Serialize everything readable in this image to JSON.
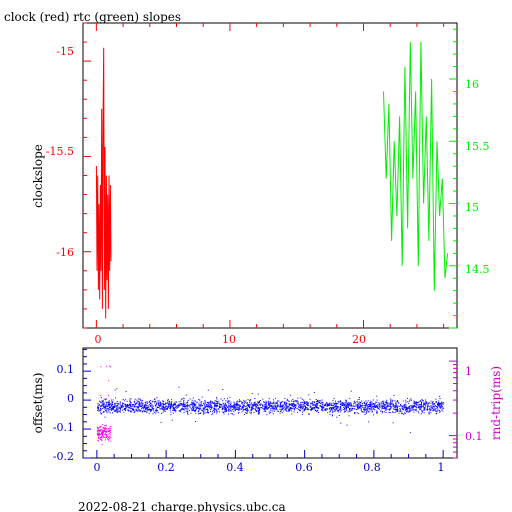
{
  "title": "clock (red) rtc (green) slopes",
  "footer": "2022-08-21 charge.physics.ubc.ca",
  "colors": {
    "clock": "#ff0000",
    "rtc": "#00ee00",
    "offset": "#0000ff",
    "rndtrip": "#ff00ff",
    "axis_blue": "#0000cc",
    "axis_magenta": "#cc00cc"
  },
  "chart_data": [
    {
      "type": "line",
      "title": "clock (red) rtc (green) slopes",
      "xlabel": "",
      "ylabel": "clockslope",
      "xlim": [
        -1,
        27
      ],
      "ylim": [
        -16.4,
        -14.8
      ],
      "y2lim": [
        14.0,
        16.45
      ],
      "x_ticks": [
        "0",
        "10",
        "20"
      ],
      "y_ticks": [
        "-15",
        "-15.5",
        "-16"
      ],
      "y2_ticks": [
        "16",
        "15.5",
        "15",
        "14.5"
      ],
      "series": [
        {
          "name": "clock",
          "axis": "left",
          "color": "#ff0000",
          "x": [
            0.0,
            0.05,
            0.1,
            0.15,
            0.2,
            0.25,
            0.3,
            0.35,
            0.4,
            0.45,
            0.5,
            0.55,
            0.6,
            0.65,
            0.7,
            0.75,
            0.8,
            0.85,
            0.9,
            0.95,
            1.0,
            1.05,
            1.1
          ],
          "y": [
            -15.55,
            -16.1,
            -15.6,
            -16.2,
            -15.75,
            -16.25,
            -15.65,
            -16.1,
            -15.25,
            -16.3,
            -15.35,
            -14.93,
            -16.2,
            -15.45,
            -16.35,
            -15.6,
            -16.15,
            -15.7,
            -16.3,
            -15.6,
            -16.1,
            -15.65,
            -16.05
          ]
        },
        {
          "name": "rtc",
          "axis": "right",
          "color": "#00ee00",
          "x": [
            21.5,
            21.7,
            21.9,
            22.1,
            22.3,
            22.5,
            22.7,
            22.9,
            23.1,
            23.3,
            23.5,
            23.7,
            23.9,
            24.1,
            24.3,
            24.5,
            24.7,
            24.9,
            25.1,
            25.3,
            25.5,
            25.7,
            25.9,
            26.1,
            26.3
          ],
          "y": [
            15.9,
            15.2,
            15.8,
            14.7,
            15.5,
            14.9,
            15.7,
            14.5,
            16.1,
            14.8,
            16.3,
            15.2,
            15.9,
            14.5,
            16.3,
            15.0,
            15.7,
            14.7,
            16.0,
            14.3,
            15.5,
            14.9,
            15.2,
            14.4,
            14.6
          ]
        }
      ]
    },
    {
      "type": "scatter",
      "xlabel": "",
      "ylabel": "offset(ms)",
      "y2label": "rnd-trip(ms)",
      "xlim": [
        -0.04,
        1.04
      ],
      "ylim": [
        -0.2,
        0.18
      ],
      "y2_scale": "log",
      "y2lim": [
        0.05,
        1.5
      ],
      "x_ticks": [
        "0",
        "0.2",
        "0.4",
        "0.6",
        "0.8",
        "1"
      ],
      "y_ticks": [
        "0.1",
        "0",
        "-0.1",
        "-0.2"
      ],
      "y2_ticks": [
        "1",
        "0.1"
      ],
      "series": [
        {
          "name": "offset",
          "axis": "left",
          "color": "#0000ff",
          "x_range": [
            0.0,
            1.0
          ],
          "y_center": -0.02,
          "y_spread": 0.035
        },
        {
          "name": "rnd-trip",
          "axis": "right",
          "color": "#ff00ff",
          "x_range": [
            0.0,
            0.04
          ],
          "y_center": 0.11,
          "y_spread": 0.04
        }
      ]
    }
  ]
}
